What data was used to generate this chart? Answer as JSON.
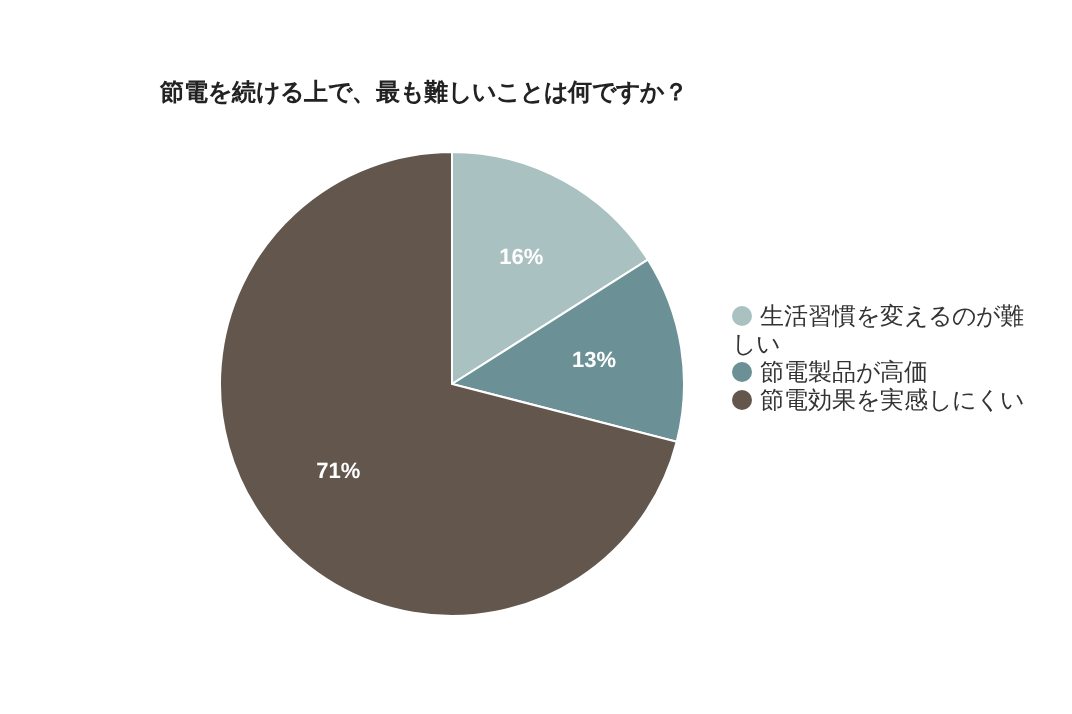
{
  "chart_data": {
    "type": "pie",
    "title": "節電を続ける上で、最も難しいことは何ですか？",
    "categories": [
      "生活習慣を変えるのが難しい",
      "節電製品が高価",
      "節電効果を実感しにくい"
    ],
    "values": [
      16,
      13,
      71
    ],
    "value_labels": [
      "16%",
      "13%",
      "71%"
    ],
    "colors": [
      "#a9c1c1",
      "#6b9095",
      "#63574d"
    ],
    "legend": "right"
  }
}
